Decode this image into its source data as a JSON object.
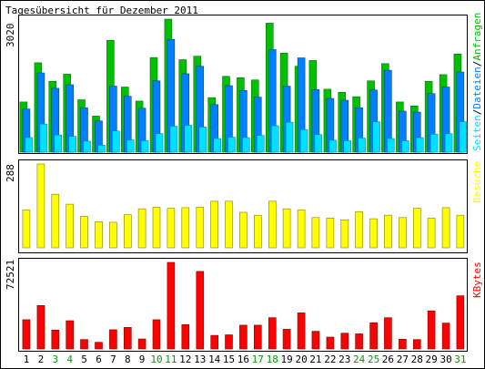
{
  "title": "Tagesübersicht für Dezember 2011",
  "colors": {
    "frame": "#000000",
    "panel_fill": "#ffffff",
    "anfragen": "#00c000",
    "dateien": "#0080ff",
    "seiten": "#00e0ff",
    "besuche": "#ffff00",
    "kbytes": "#ff0000",
    "weekday_label": "#000000",
    "weekend_label": "#00a000"
  },
  "chart_data": [
    {
      "type": "bar",
      "name": "top-panel",
      "ymax_label": "3020",
      "ylim": [
        0,
        3020
      ],
      "legend": [
        {
          "name": "Seiten",
          "color": "#00e0ff"
        },
        {
          "name": "Dateien",
          "color": "#0080ff"
        },
        {
          "name": "Anfragen",
          "color": "#00c000"
        }
      ],
      "legend_separator": "/",
      "categories": [
        "1",
        "2",
        "3",
        "4",
        "5",
        "6",
        "7",
        "8",
        "9",
        "10",
        "11",
        "12",
        "13",
        "14",
        "15",
        "16",
        "17",
        "18",
        "19",
        "20",
        "21",
        "22",
        "23",
        "24",
        "25",
        "26",
        "27",
        "28",
        "29",
        "30",
        "31"
      ],
      "weekend": [
        "3",
        "4",
        "10",
        "11",
        "17",
        "18",
        "24",
        "25",
        "31"
      ],
      "series": [
        {
          "name": "Anfragen",
          "values": [
            1140,
            2030,
            1610,
            1770,
            1190,
            820,
            2540,
            1480,
            1160,
            2150,
            3020,
            2100,
            2180,
            1240,
            1720,
            1690,
            1640,
            2930,
            2250,
            1950,
            2080,
            1430,
            1360,
            1260,
            1620,
            2010,
            1140,
            1050,
            1610,
            1760,
            2230
          ]
        },
        {
          "name": "Dateien",
          "values": [
            980,
            1800,
            1450,
            1530,
            1010,
            710,
            1500,
            1270,
            1000,
            1620,
            2560,
            1780,
            1950,
            1080,
            1510,
            1400,
            1250,
            2330,
            1500,
            2140,
            1420,
            1220,
            1180,
            1010,
            1410,
            1860,
            930,
            910,
            1330,
            1480,
            1820
          ]
        },
        {
          "name": "Seiten",
          "values": [
            330,
            640,
            390,
            360,
            250,
            160,
            480,
            280,
            260,
            420,
            590,
            610,
            570,
            310,
            340,
            330,
            380,
            600,
            680,
            510,
            400,
            270,
            260,
            320,
            690,
            310,
            260,
            330,
            410,
            420,
            690
          ]
        }
      ]
    },
    {
      "type": "bar",
      "name": "middle-panel",
      "ymax_label": "288",
      "ylim": [
        0,
        288
      ],
      "legend": [
        {
          "name": "Besuche",
          "color": "#ffff00"
        }
      ],
      "categories": [
        "1",
        "2",
        "3",
        "4",
        "5",
        "6",
        "7",
        "8",
        "9",
        "10",
        "11",
        "12",
        "13",
        "14",
        "15",
        "16",
        "17",
        "18",
        "19",
        "20",
        "21",
        "22",
        "23",
        "24",
        "25",
        "26",
        "27",
        "28",
        "29",
        "30",
        "31"
      ],
      "series": [
        {
          "name": "Besuche",
          "values": [
            130,
            288,
            184,
            150,
            108,
            90,
            88,
            114,
            134,
            140,
            136,
            138,
            140,
            160,
            160,
            122,
            112,
            160,
            134,
            130,
            104,
            102,
            96,
            124,
            100,
            112,
            104,
            136,
            102,
            138,
            112
          ]
        }
      ]
    },
    {
      "type": "bar",
      "name": "bottom-panel",
      "ymax_label": "72521",
      "ylim": [
        0,
        72521
      ],
      "legend": [
        {
          "name": "KBytes",
          "color": "#ff0000"
        }
      ],
      "categories": [
        "1",
        "2",
        "3",
        "4",
        "5",
        "6",
        "7",
        "8",
        "9",
        "10",
        "11",
        "12",
        "13",
        "14",
        "15",
        "16",
        "17",
        "18",
        "19",
        "20",
        "21",
        "22",
        "23",
        "24",
        "25",
        "26",
        "27",
        "28",
        "29",
        "30",
        "31"
      ],
      "series": [
        {
          "name": "KBytes",
          "values": [
            24500,
            36400,
            15800,
            23700,
            7900,
            5600,
            16100,
            18100,
            8400,
            24500,
            72521,
            20400,
            65000,
            11400,
            11800,
            19900,
            19900,
            26200,
            16500,
            30200,
            14800,
            9900,
            13200,
            12700,
            22000,
            26200,
            8200,
            7900,
            31900,
            21700,
            44600
          ]
        }
      ]
    }
  ]
}
